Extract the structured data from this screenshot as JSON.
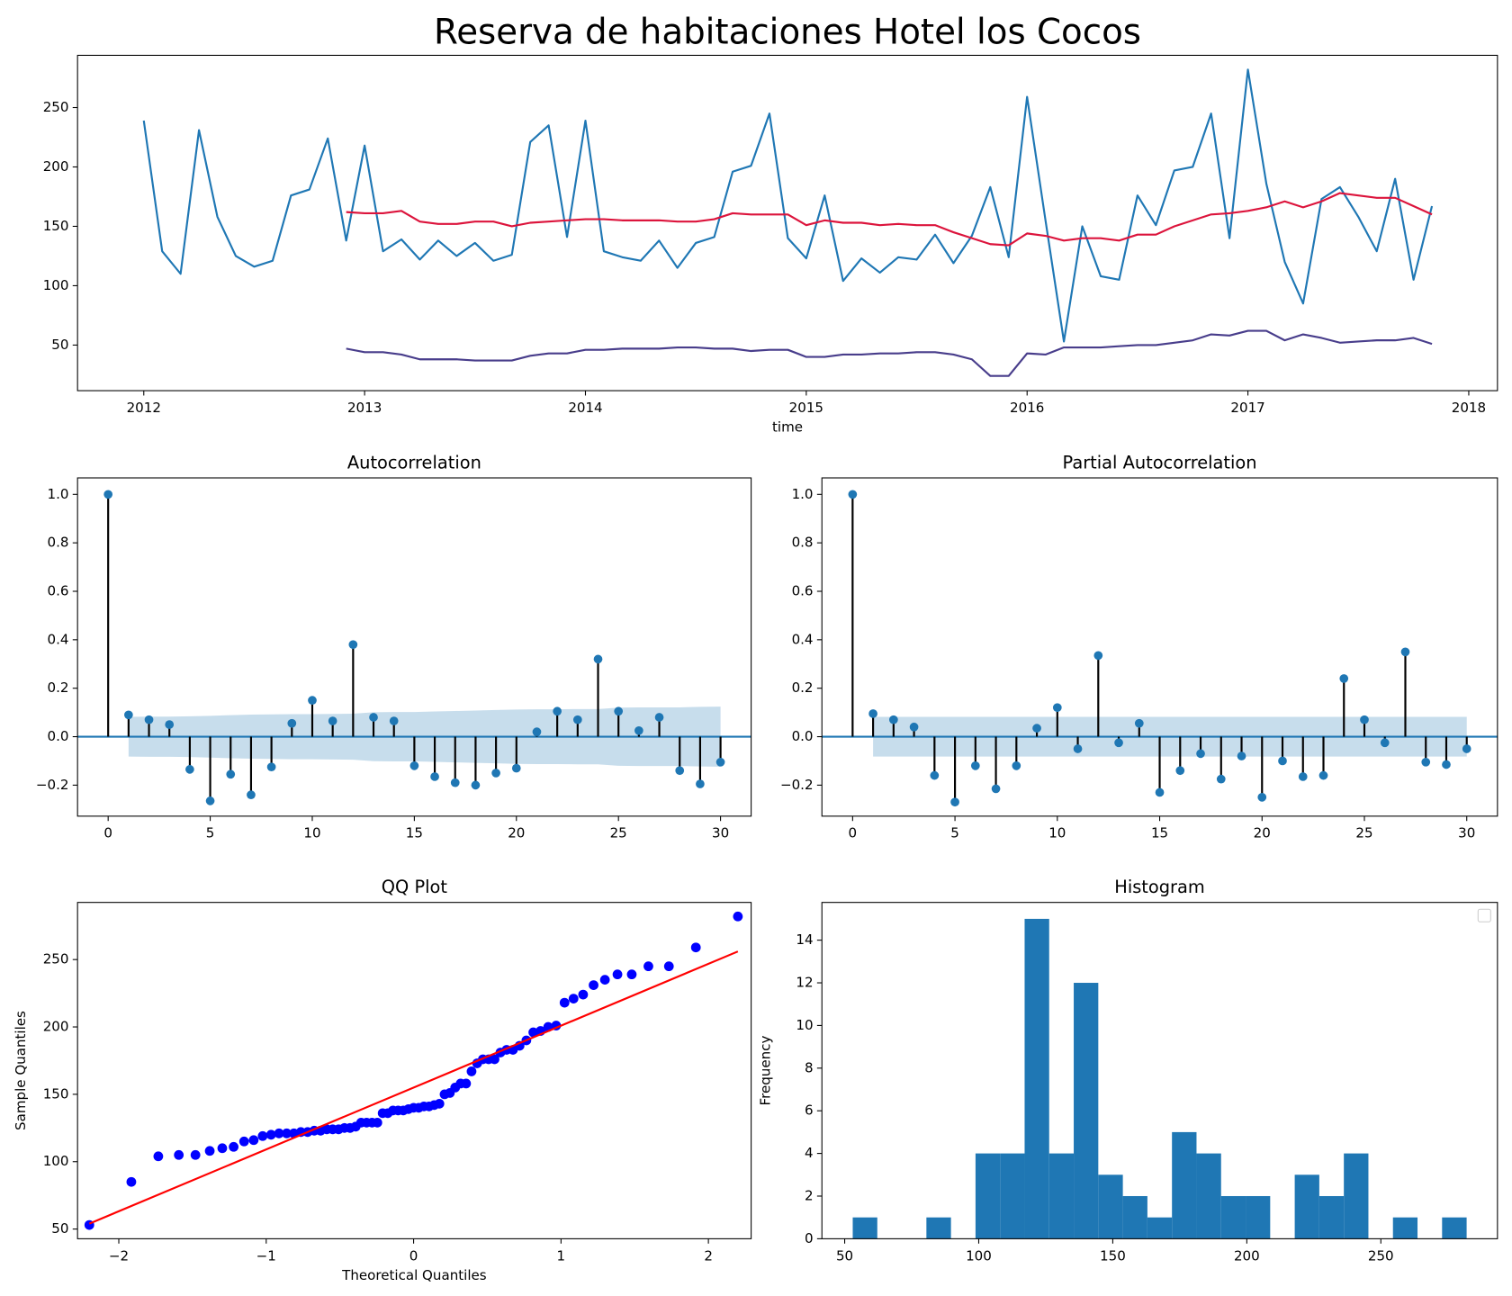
{
  "chart_data": [
    {
      "type": "line",
      "title": "Reserva de habitaciones Hotel los Cocos",
      "xlabel": "time",
      "x": [
        "2012-01",
        "2012-02",
        "2012-03",
        "2012-04",
        "2012-05",
        "2012-06",
        "2012-07",
        "2012-08",
        "2012-09",
        "2012-10",
        "2012-11",
        "2012-12",
        "2013-01",
        "2013-02",
        "2013-03",
        "2013-04",
        "2013-05",
        "2013-06",
        "2013-07",
        "2013-08",
        "2013-09",
        "2013-10",
        "2013-11",
        "2013-12",
        "2014-01",
        "2014-02",
        "2014-03",
        "2014-04",
        "2014-05",
        "2014-06",
        "2014-07",
        "2014-08",
        "2014-09",
        "2014-10",
        "2014-11",
        "2014-12",
        "2015-01",
        "2015-02",
        "2015-03",
        "2015-04",
        "2015-05",
        "2015-06",
        "2015-07",
        "2015-08",
        "2015-09",
        "2015-10",
        "2015-11",
        "2015-12",
        "2016-01",
        "2016-02",
        "2016-03",
        "2016-04",
        "2016-05",
        "2016-06",
        "2016-07",
        "2016-08",
        "2016-09",
        "2016-10",
        "2016-11",
        "2016-12",
        "2017-01",
        "2017-02",
        "2017-03",
        "2017-04",
        "2017-05",
        "2017-06",
        "2017-07",
        "2017-08",
        "2017-09",
        "2017-10",
        "2017-11"
      ],
      "series": [
        {
          "color": "#1f77b4",
          "values": [
            239,
            129,
            110,
            231,
            158,
            125,
            116,
            121,
            176,
            181,
            224,
            138,
            218,
            129,
            139,
            122,
            138,
            125,
            136,
            121,
            126,
            221,
            235,
            141,
            239,
            129,
            124,
            121,
            138,
            115,
            136,
            141,
            196,
            201,
            245,
            140,
            123,
            176,
            104,
            123,
            111,
            124,
            122,
            143,
            119,
            142,
            183,
            124,
            259,
            155,
            53,
            150,
            108,
            105,
            176,
            151,
            197,
            200,
            245,
            140,
            282,
            186,
            120,
            85,
            173,
            183,
            158,
            129,
            190,
            105,
            167
          ]
        },
        {
          "color": "#dc143c",
          "values": [
            null,
            null,
            null,
            null,
            null,
            null,
            null,
            null,
            null,
            null,
            null,
            162,
            161,
            161,
            163,
            154,
            152,
            152,
            154,
            154,
            150,
            153,
            154,
            155,
            156,
            156,
            155,
            155,
            155,
            154,
            154,
            156,
            161,
            160,
            160,
            160,
            151,
            155,
            153,
            153,
            151,
            152,
            151,
            151,
            145,
            140,
            135,
            134,
            144,
            142,
            138,
            140,
            140,
            138,
            143,
            143,
            150,
            155,
            160,
            161,
            163,
            166,
            171,
            166,
            171,
            178,
            176,
            174,
            174,
            167,
            160
          ]
        },
        {
          "color": "#483d8b",
          "values": [
            null,
            null,
            null,
            null,
            null,
            null,
            null,
            null,
            null,
            null,
            null,
            47,
            44,
            44,
            42,
            38,
            38,
            38,
            37,
            37,
            37,
            41,
            43,
            43,
            46,
            46,
            47,
            47,
            47,
            48,
            48,
            47,
            47,
            45,
            46,
            46,
            40,
            40,
            42,
            42,
            43,
            43,
            44,
            44,
            42,
            38,
            24,
            24,
            43,
            42,
            48,
            48,
            48,
            49,
            50,
            50,
            52,
            54,
            59,
            58,
            62,
            62,
            54,
            59,
            56,
            52,
            53,
            54,
            54,
            56,
            51
          ]
        }
      ],
      "xlim": [
        2011.7,
        2018.13
      ],
      "xticks": [
        2012,
        2013,
        2014,
        2015,
        2016,
        2017,
        2018
      ],
      "ylim": [
        11.6,
        294
      ],
      "yticks": [
        50,
        100,
        150,
        200,
        250
      ]
    },
    {
      "type": "stem",
      "title": "Autocorrelation",
      "color": "#1f77b4",
      "stem_color": "black",
      "x": [
        0,
        1,
        2,
        3,
        4,
        5,
        6,
        7,
        8,
        9,
        10,
        11,
        12,
        13,
        14,
        15,
        16,
        17,
        18,
        19,
        20,
        21,
        22,
        23,
        24,
        25,
        26,
        27,
        28,
        29,
        30
      ],
      "values": [
        1.0,
        0.09,
        0.07,
        0.05,
        -0.135,
        -0.265,
        -0.155,
        -0.24,
        -0.125,
        0.055,
        0.15,
        0.065,
        0.38,
        0.08,
        0.065,
        -0.12,
        -0.165,
        -0.19,
        -0.2,
        -0.15,
        -0.13,
        0.02,
        0.105,
        0.07,
        0.32,
        0.105,
        0.025,
        0.08,
        -0.14,
        -0.195,
        -0.105
      ],
      "band": [
        null,
        0.082,
        0.083,
        0.083,
        0.084,
        0.086,
        0.089,
        0.091,
        0.092,
        0.093,
        0.093,
        0.094,
        0.095,
        0.101,
        0.102,
        0.102,
        0.104,
        0.106,
        0.108,
        0.11,
        0.112,
        0.113,
        0.113,
        0.114,
        0.114,
        0.12,
        0.121,
        0.121,
        0.121,
        0.123,
        0.124
      ],
      "xlim": [
        -1.5,
        31.5
      ],
      "xticks": [
        0,
        5,
        10,
        15,
        20,
        25,
        30
      ],
      "ylim": [
        -0.328,
        1.068
      ],
      "yticks": [
        {
          "value": -0.2,
          "label": "−0.2"
        },
        {
          "value": 0,
          "label": "0.0"
        },
        0.2,
        0.4,
        0.6,
        0.8,
        {
          "value": 1,
          "label": "1.0"
        }
      ]
    },
    {
      "type": "stem",
      "title": "Partial Autocorrelation",
      "color": "#1f77b4",
      "stem_color": "black",
      "x": [
        0,
        1,
        2,
        3,
        4,
        5,
        6,
        7,
        8,
        9,
        10,
        11,
        12,
        13,
        14,
        15,
        16,
        17,
        18,
        19,
        20,
        21,
        22,
        23,
        24,
        25,
        26,
        27,
        28,
        29,
        30
      ],
      "values": [
        1.0,
        0.095,
        0.07,
        0.04,
        -0.16,
        -0.27,
        -0.12,
        -0.215,
        -0.12,
        0.035,
        0.12,
        -0.05,
        0.335,
        -0.025,
        0.055,
        -0.23,
        -0.14,
        -0.07,
        -0.175,
        -0.08,
        -0.25,
        -0.1,
        -0.165,
        -0.16,
        0.24,
        0.07,
        -0.025,
        0.35,
        -0.105,
        -0.115,
        -0.05
      ],
      "band": [
        null,
        0.082,
        0.082,
        0.082,
        0.082,
        0.082,
        0.082,
        0.082,
        0.082,
        0.082,
        0.082,
        0.082,
        0.082,
        0.082,
        0.082,
        0.082,
        0.082,
        0.082,
        0.082,
        0.082,
        0.082,
        0.082,
        0.082,
        0.082,
        0.082,
        0.082,
        0.082,
        0.082,
        0.082,
        0.082,
        0.082
      ],
      "xlim": [
        -1.5,
        31.5
      ],
      "xticks": [
        0,
        5,
        10,
        15,
        20,
        25,
        30
      ],
      "ylim": [
        -0.328,
        1.068
      ],
      "yticks": [
        {
          "value": -0.2,
          "label": "−0.2"
        },
        {
          "value": 0,
          "label": "0.0"
        },
        0.2,
        0.4,
        0.6,
        0.8,
        {
          "value": 1,
          "label": "1.0"
        }
      ]
    },
    {
      "type": "scatter",
      "title": "QQ Plot",
      "xlabel": "Theoretical Quantiles",
      "ylabel": "Sample Quantiles",
      "color": "blue",
      "x": [
        -2.2,
        -1.915,
        -1.732,
        -1.593,
        -1.48,
        -1.383,
        -1.298,
        -1.221,
        -1.15,
        -1.085,
        -1.024,
        -0.967,
        -0.913,
        -0.861,
        -0.812,
        -0.765,
        -0.719,
        -0.674,
        -0.631,
        -0.589,
        -0.549,
        -0.509,
        -0.47,
        -0.431,
        -0.393,
        -0.356,
        -0.319,
        -0.282,
        -0.246,
        -0.21,
        -0.175,
        -0.14,
        -0.105,
        -0.07,
        -0.035,
        0,
        0.035,
        0.07,
        0.105,
        0.14,
        0.175,
        0.21,
        0.246,
        0.282,
        0.319,
        0.356,
        0.393,
        0.431,
        0.47,
        0.509,
        0.549,
        0.589,
        0.631,
        0.674,
        0.719,
        0.765,
        0.812,
        0.861,
        0.913,
        0.967,
        1.024,
        1.085,
        1.15,
        1.221,
        1.298,
        1.383,
        1.48,
        1.593,
        1.732,
        1.915,
        2.2
      ],
      "values": [
        53,
        85,
        104,
        105,
        105,
        108,
        110,
        111,
        115,
        116,
        119,
        120,
        121,
        121,
        121,
        122,
        122,
        123,
        123,
        124,
        124,
        124,
        125,
        125,
        126,
        129,
        129,
        129,
        129,
        136,
        136,
        138,
        138,
        138,
        139,
        140,
        140,
        141,
        141,
        142,
        143,
        150,
        151,
        155,
        158,
        158,
        167,
        173,
        176,
        176,
        176,
        181,
        183,
        183,
        186,
        190,
        196,
        197,
        200,
        201,
        218,
        221,
        224,
        231,
        235,
        239,
        239,
        245,
        245,
        259,
        282
      ],
      "fit": {
        "color": "red",
        "x": [
          -2.2,
          2.2
        ],
        "y": [
          54,
          256
        ]
      },
      "xlim": [
        -2.28,
        2.29
      ],
      "xticks": [
        {
          "value": -2,
          "label": "−2"
        },
        {
          "value": -1,
          "label": "−1"
        },
        0,
        1,
        2
      ],
      "ylim": [
        42.8,
        292.4
      ],
      "yticks": [
        50,
        100,
        150,
        200,
        250
      ]
    },
    {
      "type": "histogram",
      "title": "Histogram",
      "ylabel": "Frequency",
      "color": "#1f77b4",
      "bins": [
        53,
        62.16,
        71.32,
        80.48,
        89.64,
        98.8,
        107.96,
        117.12,
        126.28,
        135.44,
        144.6,
        153.76,
        162.92,
        172.08,
        181.24,
        190.4,
        199.56,
        208.72,
        217.88,
        227.04,
        236.2,
        245.36,
        254.52,
        263.68,
        272.84,
        282
      ],
      "values": [
        1,
        0,
        0,
        1,
        0,
        4,
        4,
        15,
        4,
        12,
        3,
        2,
        1,
        5,
        4,
        2,
        2,
        0,
        3,
        2,
        4,
        0,
        1,
        0,
        1
      ],
      "xlim": [
        41.5,
        293.5
      ],
      "xticks": [
        50,
        100,
        150,
        200,
        250
      ],
      "ylim": [
        0,
        15.77
      ],
      "yticks": [
        0,
        2,
        4,
        6,
        8,
        10,
        12,
        14
      ]
    }
  ]
}
